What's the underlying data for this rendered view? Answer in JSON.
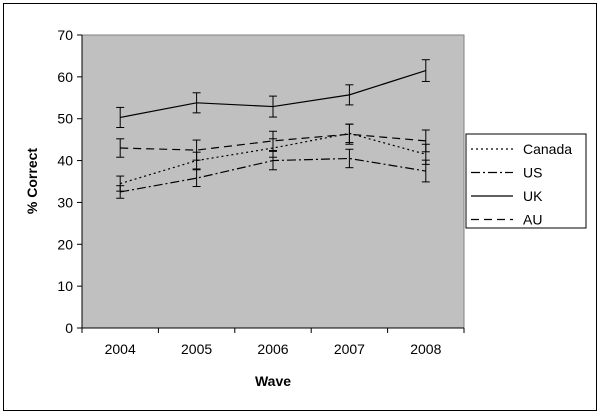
{
  "chart_data": {
    "type": "line",
    "title": "",
    "xlabel": "Wave",
    "ylabel": "% Correct",
    "categories": [
      "2004",
      "2005",
      "2006",
      "2007",
      "2008"
    ],
    "ylim": [
      0,
      70
    ],
    "yticks": [
      0,
      10,
      20,
      30,
      40,
      50,
      60,
      70
    ],
    "grid": false,
    "plot_background": "#c0c0c0",
    "legend_position": "right",
    "error_bars": true,
    "series": [
      {
        "name": "Canada",
        "dash": "dotted",
        "values": [
          34.5,
          40.0,
          43.0,
          46.5,
          41.5
        ],
        "errors": [
          1.8,
          2.0,
          2.2,
          2.2,
          2.4
        ]
      },
      {
        "name": "US",
        "dash": "dash-dot",
        "values": [
          32.5,
          35.8,
          40.0,
          40.5,
          37.5
        ],
        "errors": [
          1.5,
          2.0,
          2.2,
          2.2,
          2.6
        ]
      },
      {
        "name": "UK",
        "dash": "solid",
        "values": [
          50.3,
          53.8,
          52.9,
          55.7,
          61.5
        ],
        "errors": [
          2.4,
          2.4,
          2.5,
          2.4,
          2.6
        ]
      },
      {
        "name": "AU",
        "dash": "dashed",
        "values": [
          43.0,
          42.5,
          44.7,
          46.3,
          44.7
        ],
        "errors": [
          2.2,
          2.4,
          2.3,
          2.4,
          2.6
        ]
      }
    ]
  }
}
